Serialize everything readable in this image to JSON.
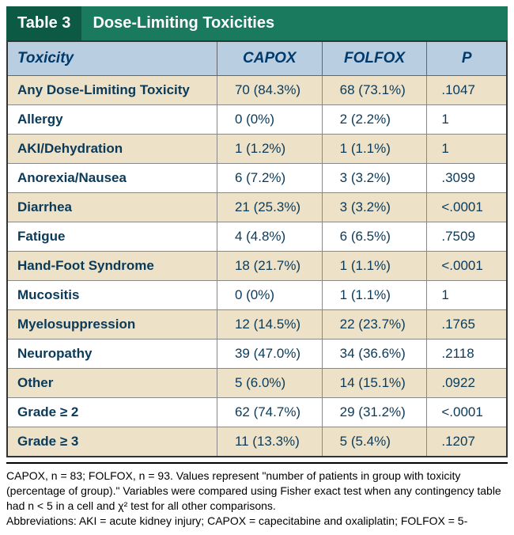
{
  "header": {
    "table_number": "Table 3",
    "title": "Dose-Limiting Toxicities"
  },
  "table": {
    "columns": [
      "Toxicity",
      "CAPOX",
      "FOLFOX",
      "P"
    ],
    "column_align": [
      "left",
      "left",
      "left",
      "left"
    ],
    "header_bg": "#b9cfe1",
    "header_color": "#003a6b",
    "row_colors": [
      "#ede2c7",
      "#ffffff"
    ],
    "border_color": "#666666",
    "rows": [
      {
        "label": "Any Dose-Limiting Toxicity",
        "capox": "70 (84.3%)",
        "folfox": "68 (73.1%)",
        "p": ".1047"
      },
      {
        "label": "Allergy",
        "capox": "0 (0%)",
        "folfox": "2 (2.2%)",
        "p": "1"
      },
      {
        "label": "AKI/Dehydration",
        "capox": "1 (1.2%)",
        "folfox": "1 (1.1%)",
        "p": "1"
      },
      {
        "label": "Anorexia/Nausea",
        "capox": "6 (7.2%)",
        "folfox": "3 (3.2%)",
        "p": ".3099"
      },
      {
        "label": "Diarrhea",
        "capox": "21 (25.3%)",
        "folfox": "3 (3.2%)",
        "p": "<.0001"
      },
      {
        "label": "Fatigue",
        "capox": "4 (4.8%)",
        "folfox": "6 (6.5%)",
        "p": ".7509"
      },
      {
        "label": "Hand-Foot Syndrome",
        "capox": "18 (21.7%)",
        "folfox": "1 (1.1%)",
        "p": "<.0001"
      },
      {
        "label": "Mucositis",
        "capox": "0 (0%)",
        "folfox": "1 (1.1%)",
        "p": "1"
      },
      {
        "label": "Myelosuppression",
        "capox": "12 (14.5%)",
        "folfox": "22 (23.7%)",
        "p": ".1765"
      },
      {
        "label": "Neuropathy",
        "capox": "39 (47.0%)",
        "folfox": "34 (36.6%)",
        "p": ".2118"
      },
      {
        "label": "Other",
        "capox": "5 (6.0%)",
        "folfox": "14 (15.1%)",
        "p": ".0922"
      },
      {
        "label": "Grade ≥ 2",
        "capox": "62 (74.7%)",
        "folfox": "29 (31.2%)",
        "p": "<.0001"
      },
      {
        "label": "Grade ≥ 3",
        "capox": "11 (13.3%)",
        "folfox": "5 (5.4%)",
        "p": ".1207"
      }
    ]
  },
  "footnote": {
    "line1": "CAPOX, n = 83; FOLFOX, n = 93. Values represent \"number of patients in group with toxicity (percentage of group).\" Variables were compared using Fisher exact test when any contingency table had n < 5 in a cell and χ² test for all other comparisons.",
    "line2": "Abbreviations: AKI = acute kidney injury; CAPOX = capecitabine and oxaliplatin; FOLFOX = 5-"
  },
  "colors": {
    "header_dark": "#0d5a44",
    "header_light": "#1a7a5e",
    "header_text": "#ffffff"
  }
}
